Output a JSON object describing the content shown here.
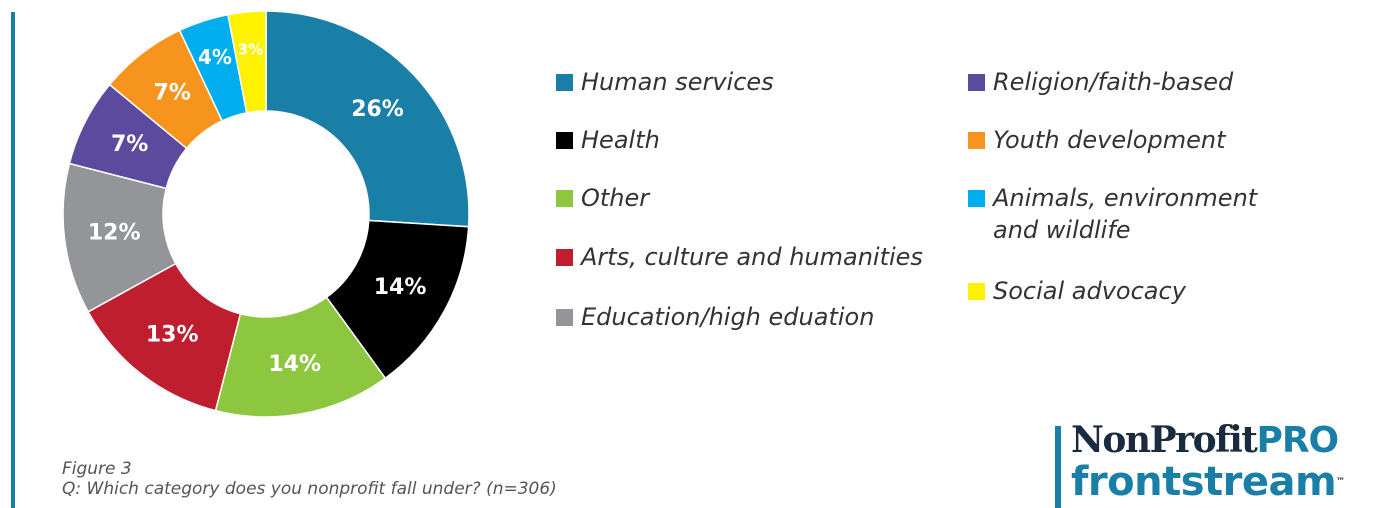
{
  "chart_data": {
    "type": "pie",
    "variant": "donut",
    "slices": [
      {
        "label": "Human services",
        "value": 26,
        "display": "26%",
        "color": "#1a7fa6"
      },
      {
        "label": "Health",
        "value": 14,
        "display": "14%",
        "color": "#000000"
      },
      {
        "label": "Other",
        "value": 14,
        "display": "14%",
        "color": "#8dc63f"
      },
      {
        "label": "Arts, culture and humanities",
        "value": 13,
        "display": "13%",
        "color": "#be1e2d"
      },
      {
        "label": "Education/high eduation",
        "value": 12,
        "display": "12%",
        "color": "#939598"
      },
      {
        "label": "Religion/faith-based",
        "value": 7,
        "display": "7%",
        "color": "#5b4a9e"
      },
      {
        "label": "Youth development",
        "value": 7,
        "display": "7%",
        "color": "#f7941d"
      },
      {
        "label": "Animals, environment\nand wildlife",
        "value": 4,
        "display": "4%",
        "color": "#00aeef"
      },
      {
        "label": "Social advocacy",
        "value": 3,
        "display": "3%",
        "color": "#fff200"
      }
    ],
    "legend_placement": "right"
  },
  "caption": {
    "figure": "Figure 3",
    "question": "Q: Which category does you nonprofit fall under?  (n=306)"
  },
  "logo": {
    "top_main": "NonProfit",
    "top_accent": "PRO",
    "bottom": "frontstream",
    "trademark": "™"
  }
}
